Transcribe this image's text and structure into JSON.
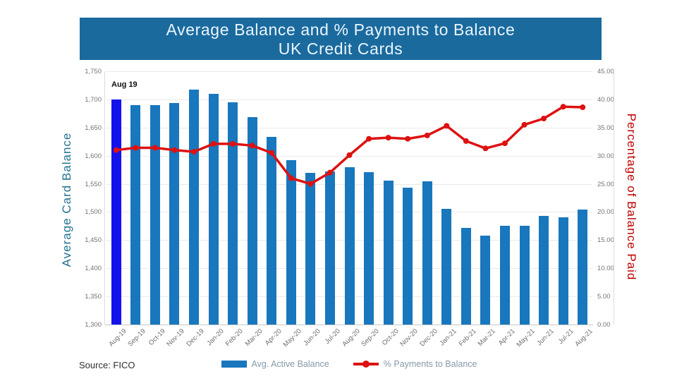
{
  "header": {
    "title_line1": "Average Balance and % Payments to Balance",
    "title_line2": "UK Credit Cards"
  },
  "annotation": {
    "label": "Aug 19"
  },
  "footer": {
    "source": "Source: FICO"
  },
  "colors": {
    "header_bg": "#1A6A9E",
    "title_text": "#EAF5FC",
    "bar": "#1877BD",
    "bar_highlight": "#1212EC",
    "line": "#DE1111",
    "left_axis_label": "#20718F",
    "right_axis_label": "#C00000",
    "tick_text": "#757575",
    "xlabel_text": "#6E6E6E",
    "legend_text": "#8699AB",
    "source_text": "#2F2F2F",
    "gridline": "#E9E9E9",
    "axis_line": "#C8C8C8"
  },
  "chart_data": {
    "type": "bar",
    "subtype": "bar+line dual axis",
    "title": "Average Balance and % Payments to Balance UK Credit Cards",
    "grid": true,
    "legend_position": "bottom",
    "categories": [
      "Aug-19",
      "Sep-19",
      "Oct-19",
      "Nov-19",
      "Dec-19",
      "Jan-20",
      "Feb-20",
      "Mar-20",
      "Apr-20",
      "May-20",
      "Jun-20",
      "Jul-20",
      "Aug-20",
      "Sep-20",
      "Oct-20",
      "Nov-20",
      "Dec-20",
      "Jan-21",
      "Feb-21",
      "Mar-21",
      "Apr-21",
      "May-21",
      "Jun-21",
      "Jul-21",
      "Aug-21"
    ],
    "series": [
      {
        "name": "Avg. Active Balance",
        "type": "bar",
        "axis": "left",
        "highlight_index": 0,
        "values": [
          1700,
          1690,
          1690,
          1694,
          1718,
          1710,
          1695,
          1668,
          1633,
          1592,
          1570,
          1572,
          1580,
          1571,
          1556,
          1543,
          1555,
          1505,
          1472,
          1458,
          1475,
          1476,
          1493,
          1490,
          1504
        ]
      },
      {
        "name": "% Payments to Balance",
        "type": "line",
        "axis": "right",
        "values": [
          31.0,
          31.4,
          31.4,
          31.0,
          30.7,
          32.1,
          32.1,
          31.8,
          30.5,
          26.0,
          25.0,
          27.0,
          30.1,
          33.0,
          33.2,
          33.0,
          33.6,
          35.3,
          32.6,
          31.3,
          32.2,
          35.5,
          36.6,
          38.7,
          38.6
        ]
      }
    ],
    "left_axis": {
      "label": "Average Card Balance",
      "min": 1300,
      "max": 1750,
      "step": 50,
      "ticks": [
        "1,750",
        "1,700",
        "1,650",
        "1,600",
        "1,550",
        "1,500",
        "1,450",
        "1,400",
        "1,350",
        "1,300"
      ]
    },
    "right_axis": {
      "label": "Percentage of Balance Paid",
      "min": 0,
      "max": 45,
      "step": 5,
      "ticks": [
        "45.00",
        "40.00",
        "35.00",
        "30.00",
        "25.00",
        "20.00",
        "15.00",
        "10.00",
        "5.00",
        "0.00"
      ]
    }
  }
}
